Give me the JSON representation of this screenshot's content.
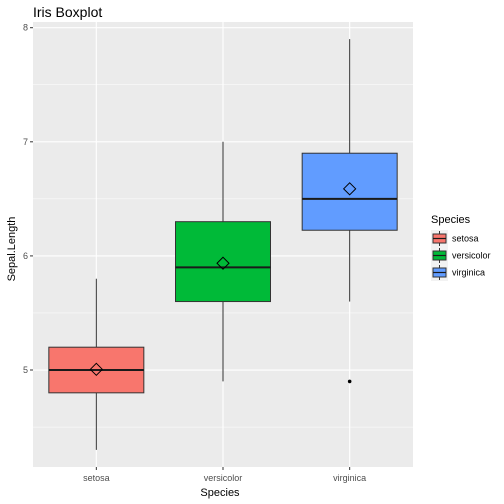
{
  "chart_data": {
    "type": "boxplot",
    "title": "Iris Boxplot",
    "xlabel": "Species",
    "ylabel": "Sepal.Length",
    "categories": [
      "setosa",
      "versicolor",
      "virginica"
    ],
    "ylim": [
      4.15,
      8.05
    ],
    "yticks": [
      5,
      6,
      7,
      8
    ],
    "grid": true,
    "legend": {
      "title": "Species",
      "position": "right",
      "items": [
        "setosa",
        "versicolor",
        "virginica"
      ]
    },
    "boxes": [
      {
        "name": "setosa",
        "min": 4.3,
        "q1": 4.8,
        "median": 5.0,
        "q3": 5.2,
        "max": 5.8,
        "mean": 5.006,
        "outliers": [],
        "color": "#F8766D"
      },
      {
        "name": "versicolor",
        "min": 4.9,
        "q1": 5.6,
        "median": 5.9,
        "q3": 6.3,
        "max": 7.0,
        "mean": 5.936,
        "outliers": [],
        "color": "#00BA38"
      },
      {
        "name": "virginica",
        "min": 5.6,
        "q1": 6.225,
        "median": 6.5,
        "q3": 6.9,
        "max": 7.9,
        "mean": 6.588,
        "outliers": [
          4.9
        ],
        "color": "#619CFF"
      }
    ],
    "panel_color": "#EBEBEB",
    "grid_color": "#FFFFFF"
  }
}
